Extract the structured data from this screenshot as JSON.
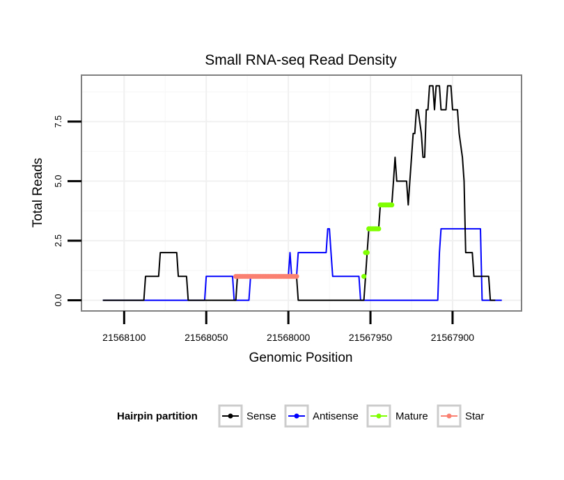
{
  "chart_data": {
    "type": "line",
    "title": "Small RNA-seq Read Density",
    "xlabel": "Genomic Position",
    "ylabel": "Total Reads",
    "x_reversed": true,
    "xlim": [
      21568126,
      21567858
    ],
    "ylim": [
      -0.45,
      9.45
    ],
    "xticks": [
      21568100,
      21568050,
      21568000,
      21567950,
      21567900
    ],
    "xtick_labels": [
      "21568100",
      "21568050",
      "21568000",
      "21567950",
      "21567900"
    ],
    "yticks": [
      0,
      2.5,
      5,
      7.5
    ],
    "ytick_labels": [
      "0.0",
      "2.5",
      "5.0",
      "7.5"
    ],
    "grid": true,
    "legend": {
      "title": "Hairpin partition",
      "position": "bottom",
      "entries": [
        "Sense",
        "Antisense",
        "Mature",
        "Star"
      ]
    },
    "colors": {
      "Sense": "#000000",
      "Antisense": "#0000ff",
      "Mature": "#7fff00",
      "Star": "#fa8072"
    },
    "series": [
      {
        "name": "Sense",
        "style": "line",
        "points": [
          [
            21568113,
            0
          ],
          [
            21568088,
            0
          ],
          [
            21568087,
            1
          ],
          [
            21568079,
            1
          ],
          [
            21568078,
            2
          ],
          [
            21568068,
            2
          ],
          [
            21568067,
            1
          ],
          [
            21568062,
            1
          ],
          [
            21568061,
            0
          ],
          [
            21568051,
            0
          ],
          [
            21568050,
            0
          ],
          [
            21568032,
            0
          ],
          [
            21568031,
            1
          ],
          [
            21567995,
            1
          ],
          [
            21567994,
            0
          ],
          [
            21567954,
            0
          ],
          [
            21567953,
            1
          ],
          [
            21567952,
            2
          ],
          [
            21567951,
            3
          ],
          [
            21567945,
            3
          ],
          [
            21567944,
            4
          ],
          [
            21567937,
            4
          ],
          [
            21567936,
            5
          ],
          [
            21567935,
            6
          ],
          [
            21567934,
            5
          ],
          [
            21567928,
            5
          ],
          [
            21567927,
            4
          ],
          [
            21567926,
            5
          ],
          [
            21567924,
            7
          ],
          [
            21567923,
            7
          ],
          [
            21567922,
            8
          ],
          [
            21567921,
            8
          ],
          [
            21567919,
            7
          ],
          [
            21567918,
            6
          ],
          [
            21567917,
            6
          ],
          [
            21567916,
            8
          ],
          [
            21567915,
            8
          ],
          [
            21567914,
            9
          ],
          [
            21567912,
            9
          ],
          [
            21567911,
            8
          ],
          [
            21567910,
            9
          ],
          [
            21567908,
            9
          ],
          [
            21567907,
            8
          ],
          [
            21567904,
            8
          ],
          [
            21567903,
            9
          ],
          [
            21567901,
            9
          ],
          [
            21567900,
            8
          ],
          [
            21567897,
            8
          ],
          [
            21567896,
            7
          ],
          [
            21567894,
            6
          ],
          [
            21567893,
            5
          ],
          [
            21567892,
            2
          ],
          [
            21567888,
            2
          ],
          [
            21567887,
            1
          ],
          [
            21567878,
            1
          ],
          [
            21567877,
            0
          ],
          [
            21567874,
            0
          ]
        ]
      },
      {
        "name": "Antisense",
        "style": "line",
        "points": [
          [
            21568113,
            0
          ],
          [
            21568051,
            0
          ],
          [
            21568050,
            1
          ],
          [
            21568034,
            1
          ],
          [
            21568033,
            0
          ],
          [
            21568024,
            0
          ],
          [
            21568023,
            1
          ],
          [
            21568000,
            1
          ],
          [
            21567999,
            2
          ],
          [
            21567998,
            1
          ],
          [
            21567995,
            1
          ],
          [
            21567994,
            2
          ],
          [
            21567977,
            2
          ],
          [
            21567976,
            3
          ],
          [
            21567975,
            3
          ],
          [
            21567974,
            2
          ],
          [
            21567973,
            1
          ],
          [
            21567957,
            1
          ],
          [
            21567956,
            0
          ],
          [
            21567909,
            0
          ],
          [
            21567908,
            2
          ],
          [
            21567907,
            3
          ],
          [
            21567883,
            3
          ],
          [
            21567882,
            0
          ],
          [
            21567870,
            0
          ]
        ]
      },
      {
        "name": "Mature",
        "style": "dots",
        "points": [
          [
            21567954,
            1
          ],
          [
            21567953,
            2
          ],
          [
            21567952,
            2
          ],
          [
            21567951,
            3
          ],
          [
            21567950,
            3
          ],
          [
            21567949,
            3
          ],
          [
            21567948,
            3
          ],
          [
            21567947,
            3
          ],
          [
            21567946,
            3
          ],
          [
            21567945,
            3
          ],
          [
            21567944,
            4
          ],
          [
            21567943,
            4
          ],
          [
            21567942,
            4
          ],
          [
            21567941,
            4
          ],
          [
            21567940,
            4
          ],
          [
            21567939,
            4
          ],
          [
            21567938,
            4
          ],
          [
            21567937,
            4
          ]
        ]
      },
      {
        "name": "Star",
        "style": "dots",
        "points": [
          [
            21568032,
            1
          ],
          [
            21568031,
            1
          ],
          [
            21568030,
            1
          ],
          [
            21568029,
            1
          ],
          [
            21568028,
            1
          ],
          [
            21568027,
            1
          ],
          [
            21568026,
            1
          ],
          [
            21568025,
            1
          ],
          [
            21568024,
            1
          ],
          [
            21568023,
            1
          ],
          [
            21568022,
            1
          ],
          [
            21568021,
            1
          ],
          [
            21568020,
            1
          ],
          [
            21568019,
            1
          ],
          [
            21568018,
            1
          ],
          [
            21568017,
            1
          ],
          [
            21568016,
            1
          ],
          [
            21568015,
            1
          ],
          [
            21568014,
            1
          ],
          [
            21568013,
            1
          ],
          [
            21568012,
            1
          ],
          [
            21568011,
            1
          ],
          [
            21568010,
            1
          ],
          [
            21568009,
            1
          ],
          [
            21568008,
            1
          ],
          [
            21568007,
            1
          ],
          [
            21568006,
            1
          ],
          [
            21568005,
            1
          ],
          [
            21568004,
            1
          ],
          [
            21568003,
            1
          ],
          [
            21568002,
            1
          ],
          [
            21568001,
            1
          ],
          [
            21568000,
            1
          ],
          [
            21567999,
            1
          ],
          [
            21567998,
            1
          ],
          [
            21567997,
            1
          ],
          [
            21567996,
            1
          ],
          [
            21567995,
            1
          ]
        ]
      }
    ]
  }
}
